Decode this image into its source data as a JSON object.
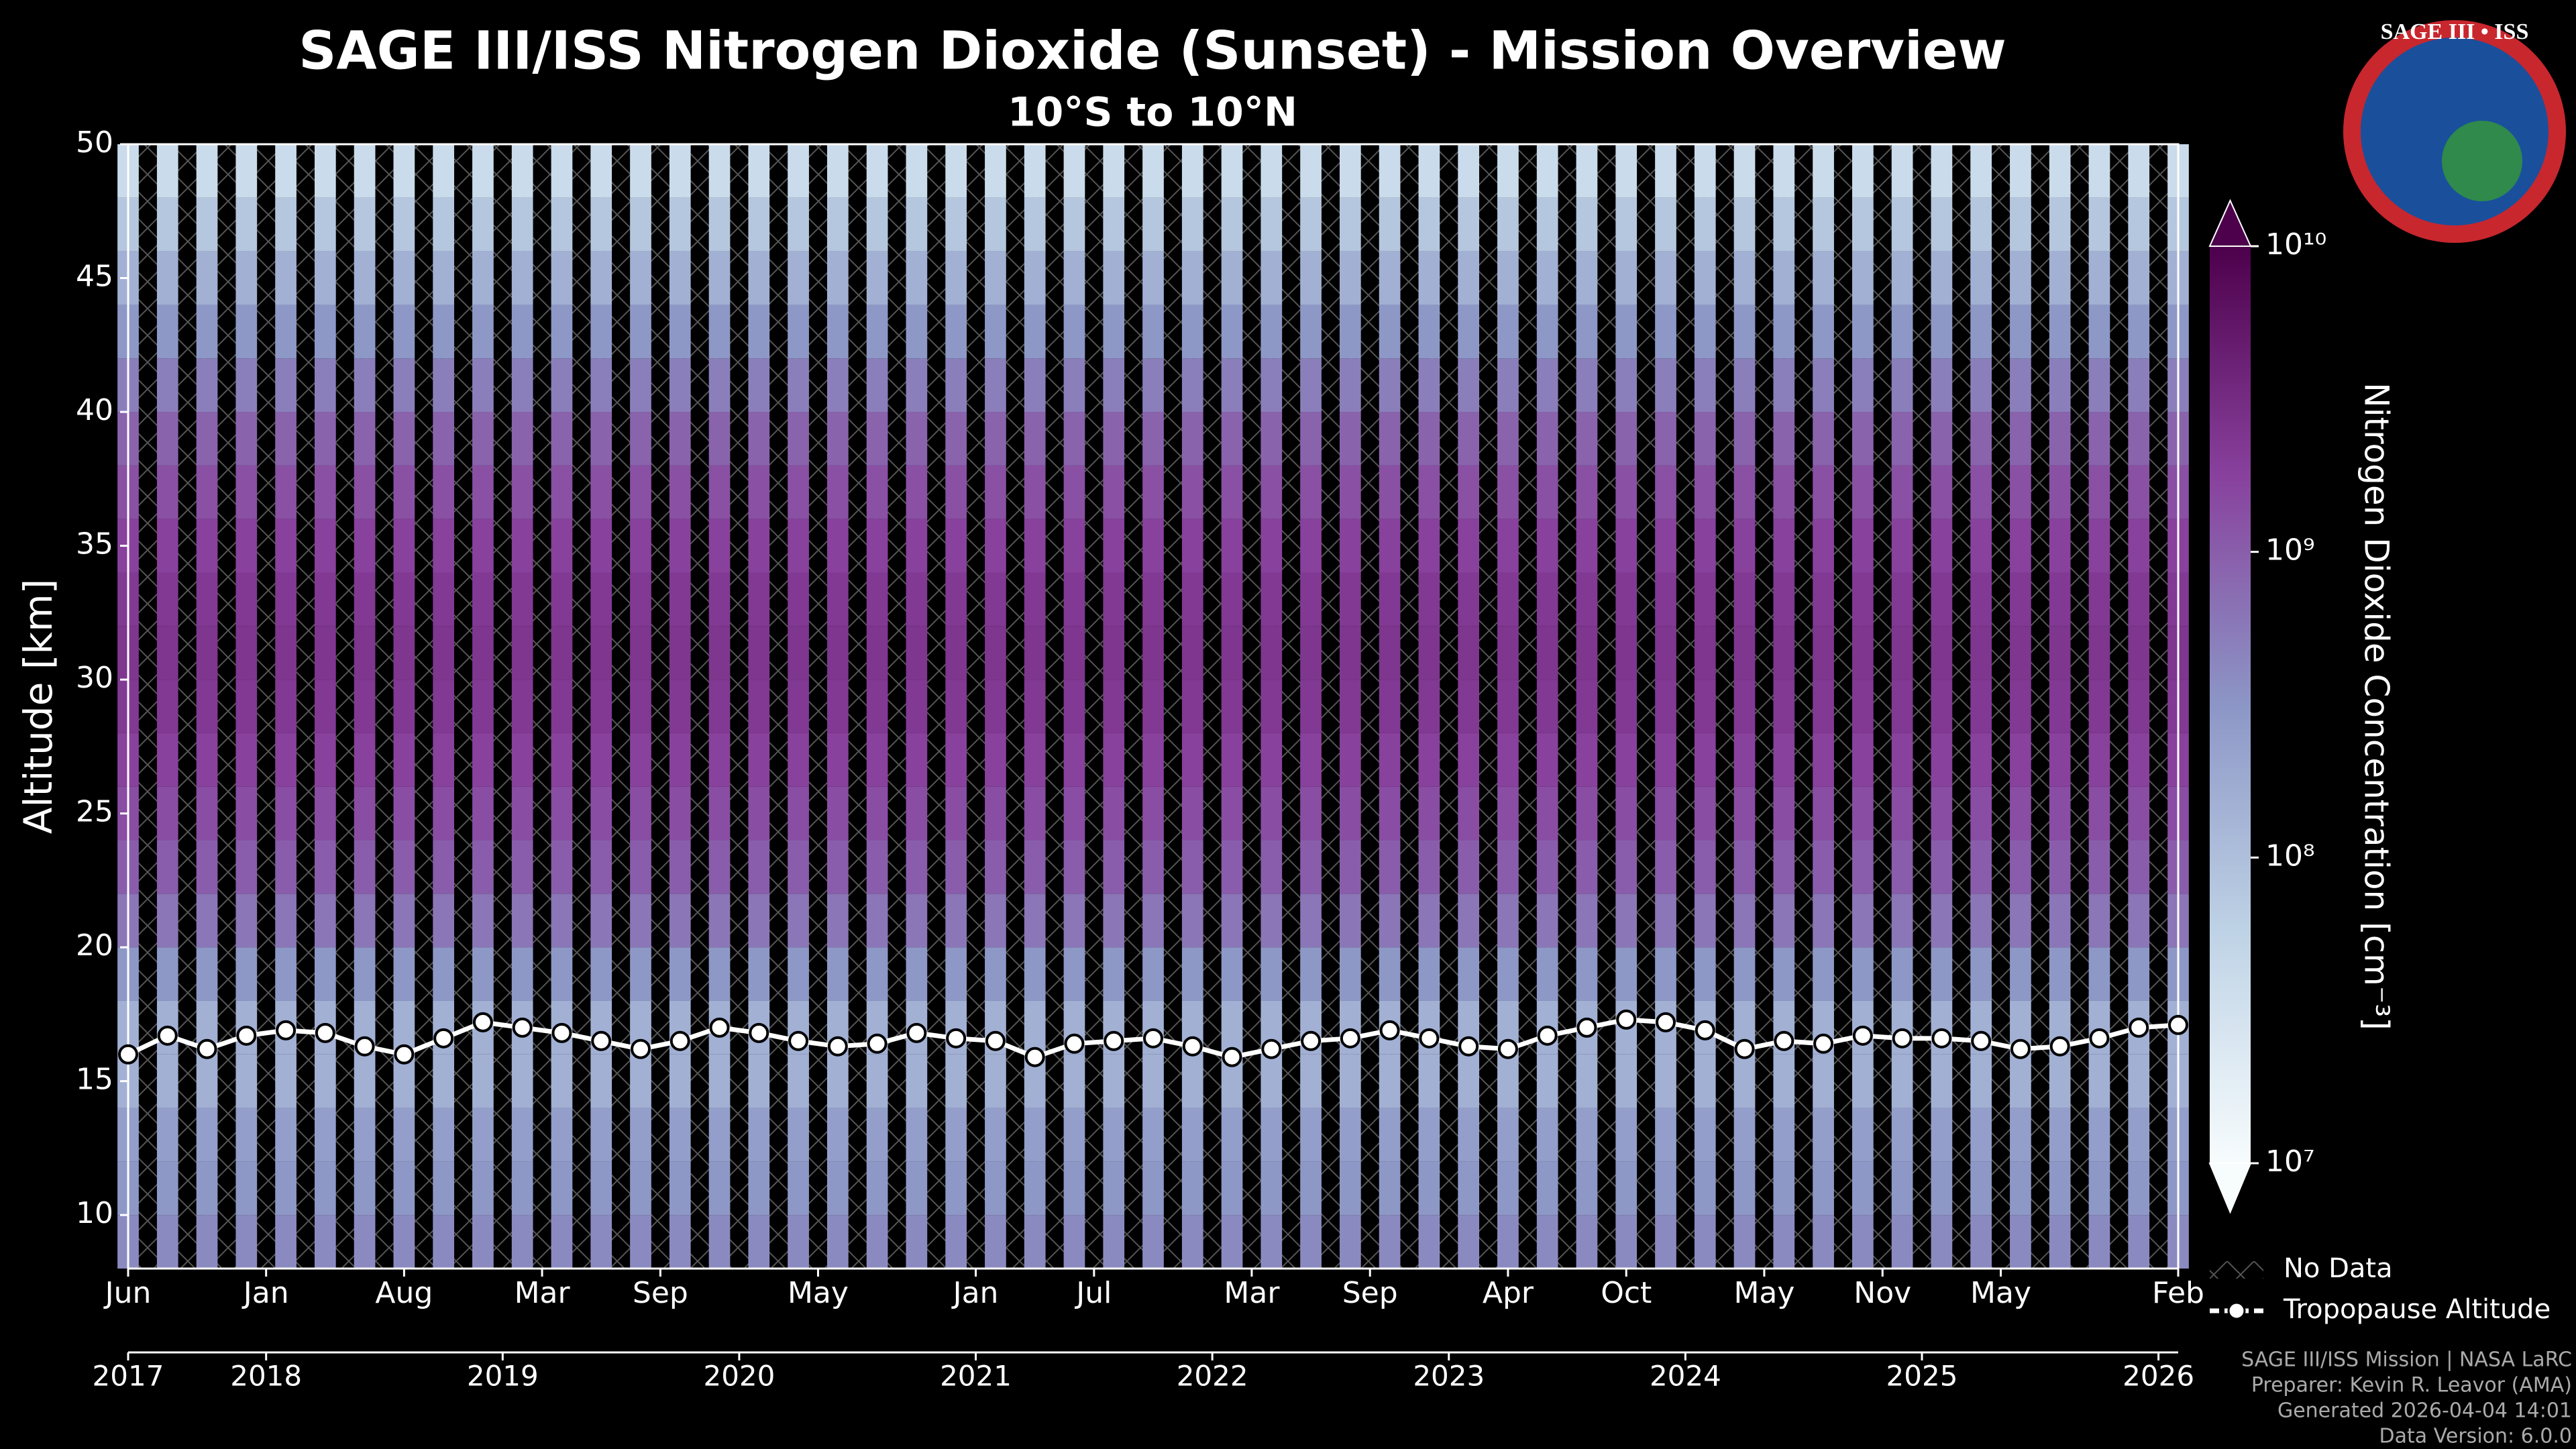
{
  "chart_data": {
    "type": "heatmap",
    "title": "SAGE III/ISS Nitrogen Dioxide (Sunset) - Mission Overview",
    "subtitle": "10°S to 10°N",
    "ylabel": "Altitude [km]",
    "ylim": [
      8,
      50
    ],
    "yticks": [
      10,
      15,
      20,
      25,
      30,
      35,
      40,
      45,
      50
    ],
    "xlim": [
      "2017-06",
      "2026-02"
    ],
    "xticks": [
      {
        "value": "2017-06",
        "label": "Jun"
      },
      {
        "value": "2018-01",
        "label": "Jan"
      },
      {
        "value": "2018-08",
        "label": "Aug"
      },
      {
        "value": "2019-03",
        "label": "Mar"
      },
      {
        "value": "2019-09",
        "label": "Sep"
      },
      {
        "value": "2020-05",
        "label": "May"
      },
      {
        "value": "2021-01",
        "label": "Jan"
      },
      {
        "value": "2021-07",
        "label": "Jul"
      },
      {
        "value": "2022-03",
        "label": "Mar"
      },
      {
        "value": "2022-09",
        "label": "Sep"
      },
      {
        "value": "2023-04",
        "label": "Apr"
      },
      {
        "value": "2023-10",
        "label": "Oct"
      },
      {
        "value": "2024-05",
        "label": "May"
      },
      {
        "value": "2024-11",
        "label": "Nov"
      },
      {
        "value": "2025-05",
        "label": "May"
      },
      {
        "value": "2026-02",
        "label": "Feb"
      }
    ],
    "year_ticks": [
      {
        "value": "2017-06",
        "label": "2017"
      },
      {
        "value": "2018-01",
        "label": "2018"
      },
      {
        "value": "2019-01",
        "label": "2019"
      },
      {
        "value": "2020-01",
        "label": "2020"
      },
      {
        "value": "2021-01",
        "label": "2021"
      },
      {
        "value": "2022-01",
        "label": "2022"
      },
      {
        "value": "2023-01",
        "label": "2023"
      },
      {
        "value": "2024-01",
        "label": "2024"
      },
      {
        "value": "2025-01",
        "label": "2025"
      },
      {
        "value": "2026-01",
        "label": "2026"
      }
    ],
    "heatmap": {
      "altitude": [
        9,
        11,
        13,
        15,
        17,
        19,
        21,
        23,
        25,
        27,
        29,
        31,
        33,
        35,
        37,
        39,
        41,
        43,
        45,
        47,
        49
      ],
      "values": [
        400000000,
        300000000,
        250000000,
        150000000,
        150000000,
        300000000,
        600000000,
        1000000000,
        1400000000,
        1800000000,
        2200000000,
        2400000000,
        2200000000,
        1800000000,
        1300000000,
        900000000,
        500000000,
        300000000,
        150000000,
        80000000,
        40000000
      ]
    },
    "colorbar": {
      "label": "Nitrogen Dioxide Concentration [cm⁻³]",
      "scale": "log",
      "lim": [
        10000000,
        10000000000
      ],
      "ticks": [
        {
          "value": 10000000,
          "label": "10⁷"
        },
        {
          "value": 100000000,
          "label": "10⁸"
        },
        {
          "value": 1000000000,
          "label": "10⁹"
        },
        {
          "value": 10000000000,
          "label": "10¹⁰"
        }
      ],
      "colormap": [
        "#f7fcfd",
        "#bfd3e6",
        "#8c96c6",
        "#88419d",
        "#4d004b"
      ]
    },
    "no_data_label": "No Data",
    "series": [
      {
        "name": "Tropopause Altitude",
        "color": "#ffffff",
        "x": [
          "2017-06",
          "2017-08",
          "2017-10",
          "2017-12",
          "2018-02",
          "2018-04",
          "2018-06",
          "2018-08",
          "2018-10",
          "2018-12",
          "2019-02",
          "2019-04",
          "2019-06",
          "2019-08",
          "2019-10",
          "2019-12",
          "2020-02",
          "2020-04",
          "2020-06",
          "2020-08",
          "2020-10",
          "2020-12",
          "2021-02",
          "2021-04",
          "2021-06",
          "2021-08",
          "2021-10",
          "2021-12",
          "2022-02",
          "2022-04",
          "2022-06",
          "2022-08",
          "2022-10",
          "2022-12",
          "2023-02",
          "2023-04",
          "2023-06",
          "2023-08",
          "2023-10",
          "2023-12",
          "2024-02",
          "2024-04",
          "2024-06",
          "2024-08",
          "2024-10",
          "2024-12",
          "2025-02",
          "2025-04",
          "2025-06",
          "2025-08",
          "2025-10",
          "2025-12",
          "2026-02"
        ],
        "values": [
          16.0,
          16.7,
          16.2,
          16.7,
          16.9,
          16.8,
          16.3,
          16.0,
          16.6,
          17.2,
          17.0,
          16.8,
          16.5,
          16.2,
          16.5,
          17.0,
          16.8,
          16.5,
          16.3,
          16.4,
          16.8,
          16.6,
          16.5,
          15.9,
          16.4,
          16.5,
          16.6,
          16.3,
          15.9,
          16.2,
          16.5,
          16.6,
          16.9,
          16.6,
          16.3,
          16.2,
          16.7,
          17.0,
          17.3,
          17.2,
          16.9,
          16.2,
          16.5,
          16.4,
          16.7,
          16.6,
          16.6,
          16.5,
          16.2,
          16.3,
          16.6,
          17.0,
          17.1
        ]
      }
    ],
    "logo": "SAGE III • ISS",
    "footer": [
      "SAGE III/ISS Mission | NASA LaRC",
      "Preparer: Kevin R. Leavor (AMA)",
      "Generated 2026-04-04 14:01",
      "Data Version: 6.0.0"
    ]
  }
}
